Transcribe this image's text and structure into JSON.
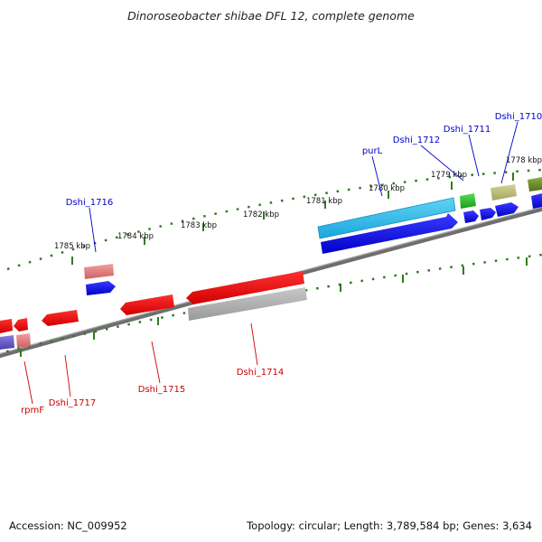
{
  "title": "Dinoroseobacter shibae DFL 12, complete genome",
  "footer": {
    "accession": "Accession: NC_009952",
    "topology": "Topology: circular; Length: 3,789,584 bp; Genes: 3,634"
  },
  "ticks": [
    {
      "label": "1778 kbp"
    },
    {
      "label": "1779 kbp"
    },
    {
      "label": "1780 kbp"
    },
    {
      "label": "1781 kbp"
    },
    {
      "label": "1782 kbp"
    },
    {
      "label": "1783 kbp"
    },
    {
      "label": "1784 kbp"
    },
    {
      "label": "1785 kbp"
    }
  ],
  "gene_labels": [
    {
      "id": "dshi-1710",
      "text": "Dshi_1710",
      "color": "#0000cc"
    },
    {
      "id": "dshi-1711",
      "text": "Dshi_1711",
      "color": "#0000cc"
    },
    {
      "id": "dshi-1712",
      "text": "Dshi_1712",
      "color": "#0000cc"
    },
    {
      "id": "purl",
      "text": "purL",
      "color": "#0000cc"
    },
    {
      "id": "dshi-1716",
      "text": "Dshi_1716",
      "color": "#0000cc"
    },
    {
      "id": "dshi-1714",
      "text": "Dshi_1714",
      "color": "#cc0000"
    },
    {
      "id": "dshi-1715",
      "text": "Dshi_1715",
      "color": "#cc0000"
    },
    {
      "id": "dshi-1717",
      "text": "Dshi_1717",
      "color": "#cc0000"
    },
    {
      "id": "rpmf",
      "text": "rpmF",
      "color": "#cc0000"
    }
  ],
  "colors": {
    "plus_cds": "#0000e6",
    "minus_cds": "#ee0000",
    "rna_cyan": "#22b8e8",
    "green_feature": "#22bb22",
    "olive_feature": "#b8b870",
    "dark_olive_feature": "#6b8e23",
    "pink_feature": "#e07070",
    "grey_feature": "#b0b0b0",
    "purple_feature": "#6a5acd",
    "backbone": "#7a7a7a",
    "tick_color": "#2e7d1e"
  }
}
